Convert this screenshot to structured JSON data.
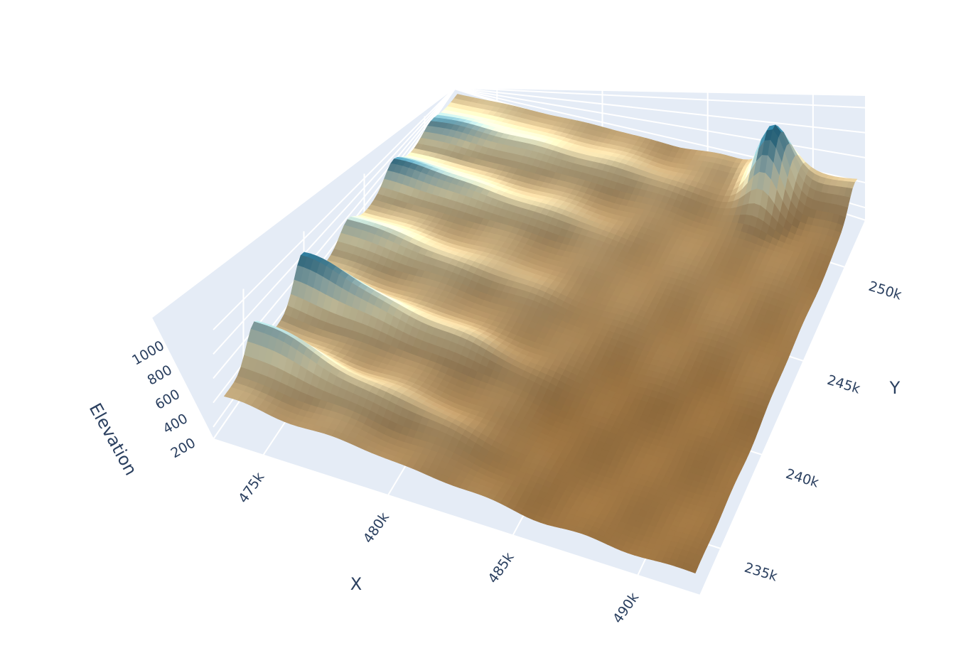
{
  "chart_data": {
    "type": "surface",
    "title": "",
    "axes": {
      "x": {
        "label": "X",
        "ticks": [
          "475k",
          "480k",
          "485k",
          "490k"
        ],
        "tick_values": [
          475000,
          480000,
          485000,
          490000
        ],
        "range": [
          473000,
          492500
        ]
      },
      "y": {
        "label": "Y",
        "ticks": [
          "235k",
          "240k",
          "245k",
          "250k"
        ],
        "tick_values": [
          235000,
          240000,
          245000,
          250000
        ],
        "range": [
          232500,
          252500
        ]
      },
      "z": {
        "label": "Elevation",
        "ticks": [
          "200",
          "400",
          "600",
          "800",
          "1000"
        ],
        "tick_values": [
          200,
          400,
          600,
          800,
          1000
        ],
        "range": [
          100,
          1100
        ]
      }
    },
    "grid": true,
    "colorscale": "earth (brown low, pale yellow middle, teal-blue high)",
    "colorscale_stops": [
      "#9c7442",
      "#b99a6c",
      "#eee7bd",
      "#a7c8c8",
      "#2f7b9a"
    ],
    "background_color": "#e5ecf6",
    "grid_color": "#ffffff",
    "surface_description": "Terrain surface sloping from high ridges in the northwest to a low basin in the southeast, with a peak near the north-east corner.",
    "ridges": [
      {
        "name": "",
        "y_frac": 0.14,
        "peak_elevation": 700
      },
      {
        "name": "",
        "y_frac": 0.34,
        "peak_elevation": 850
      },
      {
        "name": "",
        "y_frac": 0.53,
        "peak_elevation": 620
      },
      {
        "name": "",
        "y_frac": 0.72,
        "peak_elevation": 780
      },
      {
        "name": "",
        "y_frac": 0.88,
        "peak_elevation": 720
      }
    ],
    "ne_peak_elevation": 880
  }
}
